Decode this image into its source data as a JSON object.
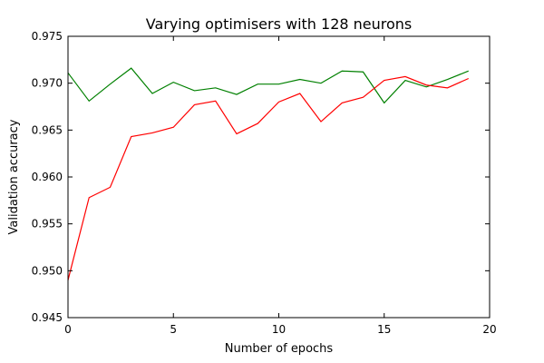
{
  "chart_data": {
    "type": "line",
    "title": "Varying optimisers with 128 neurons",
    "xlabel": "Number of epochs",
    "ylabel": "Validation accuracy",
    "xlim": [
      0,
      20
    ],
    "ylim": [
      0.945,
      0.975
    ],
    "x_ticks": [
      0,
      5,
      10,
      15,
      20
    ],
    "x_tick_labels": [
      "0",
      "5",
      "10",
      "15",
      "20"
    ],
    "y_ticks": [
      0.945,
      0.95,
      0.955,
      0.96,
      0.965,
      0.97,
      0.975
    ],
    "y_tick_labels": [
      "0.945",
      "0.950",
      "0.955",
      "0.960",
      "0.965",
      "0.970",
      "0.975"
    ],
    "grid": false,
    "legend": false,
    "x": [
      0,
      1,
      2,
      3,
      4,
      5,
      6,
      7,
      8,
      9,
      10,
      11,
      12,
      13,
      14,
      15,
      16,
      17,
      18,
      19
    ],
    "series": [
      {
        "color": "#008000",
        "values": [
          0.9711,
          0.9681,
          0.9699,
          0.9716,
          0.9689,
          0.9701,
          0.9692,
          0.9695,
          0.9688,
          0.9699,
          0.9699,
          0.9704,
          0.97,
          0.9713,
          0.9712,
          0.9679,
          0.9703,
          0.9696,
          0.9704,
          0.9713
        ]
      },
      {
        "color": "#ff0000",
        "values": [
          0.949,
          0.9578,
          0.9589,
          0.9643,
          0.9647,
          0.9653,
          0.9677,
          0.9681,
          0.9646,
          0.9657,
          0.968,
          0.9689,
          0.9659,
          0.9679,
          0.9685,
          0.9703,
          0.9707,
          0.9698,
          0.9695,
          0.9705
        ]
      }
    ]
  }
}
